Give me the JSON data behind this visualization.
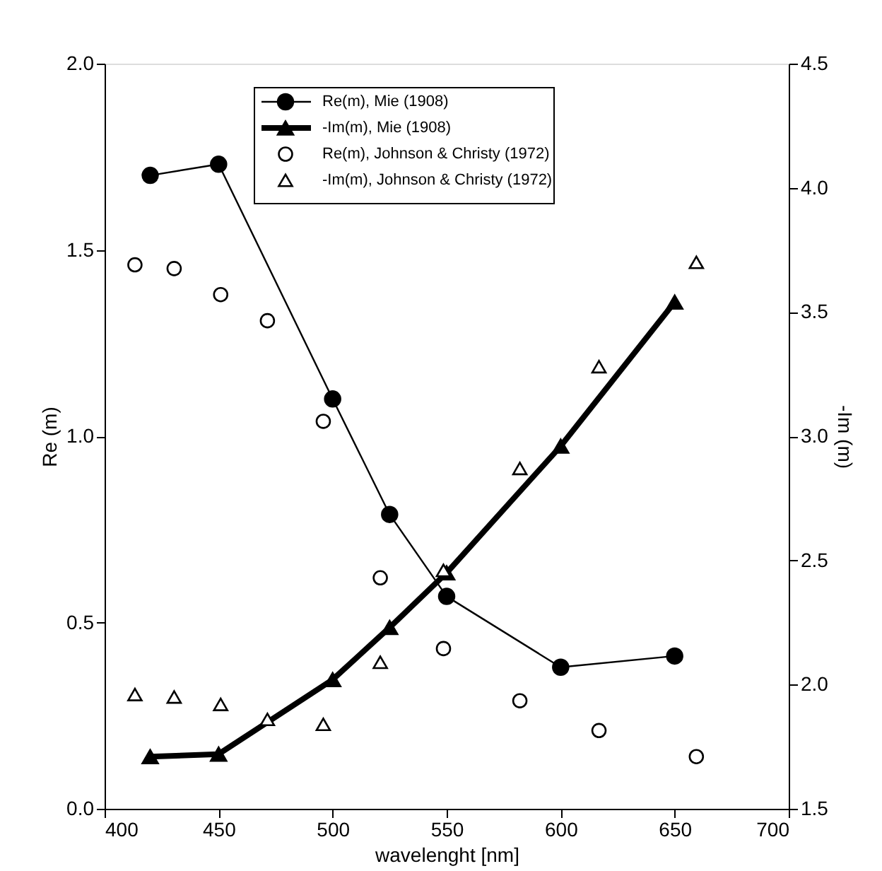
{
  "chart_data": {
    "type": "line",
    "xlabel": "wavelenght [nm]",
    "ylabel": "Re (m)",
    "y2label": "-Im (m)",
    "xlim": [
      400,
      700
    ],
    "xticks": [
      400,
      450,
      500,
      550,
      600,
      650,
      700
    ],
    "ylim": [
      0,
      2
    ],
    "yticks": [
      {
        "value": 0,
        "label": "0.0"
      },
      {
        "value": 0.5,
        "label": "0.5"
      },
      {
        "value": 1,
        "label": "1.0"
      },
      {
        "value": 1.5,
        "label": "1.5"
      },
      {
        "value": 2,
        "label": "2.0"
      }
    ],
    "y2lim": [
      1.5,
      4.5
    ],
    "y2ticks": [
      {
        "value": 1.5,
        "label": "1.5"
      },
      {
        "value": 2,
        "label": "2.0"
      },
      {
        "value": 2.5,
        "label": "2.5"
      },
      {
        "value": 3,
        "label": "3.0"
      },
      {
        "value": 3.5,
        "label": "3.5"
      },
      {
        "value": 4,
        "label": "4.0"
      },
      {
        "value": 4.5,
        "label": "4.5"
      }
    ],
    "grid": false,
    "legend": "top",
    "series": [
      {
        "name": "Re(m), Mie (1908)",
        "marker": "circle",
        "color": "#000000",
        "x": [
          420,
          450,
          500,
          525,
          550,
          600,
          650
        ],
        "values": [
          1.7,
          1.73,
          1.1,
          0.79,
          0.57,
          0.38,
          0.41
        ]
      },
      {
        "name": "-Im(m), Mie (1908)",
        "axis": "y2",
        "marker": "triangle",
        "color": "#000000",
        "x": [
          420,
          450,
          500,
          525,
          550,
          600,
          650
        ],
        "values": [
          1.71,
          1.72,
          2.02,
          2.23,
          2.45,
          2.96,
          3.54
        ]
      },
      {
        "name": "Re(m), Johnson & Christy (1972)",
        "type": "scatter",
        "marker": "circle",
        "color": "#000000",
        "x": [
          413.3,
          430.5,
          450.9,
          471.4,
          495.9,
          520.9,
          548.6,
          582.1,
          616.8,
          659.5
        ],
        "values": [
          1.46,
          1.45,
          1.38,
          1.31,
          1.04,
          0.62,
          0.43,
          0.29,
          0.21,
          0.14
        ]
      },
      {
        "name": "-Im(m), Johnson & Christy (1972)",
        "type": "scatter",
        "axis": "y2",
        "marker": "triangle",
        "color": "#000000",
        "x": [
          413.3,
          430.5,
          450.9,
          471.4,
          495.9,
          520.9,
          548.6,
          582.1,
          616.8,
          659.5
        ],
        "values": [
          1.96,
          1.95,
          1.92,
          1.86,
          1.84,
          2.09,
          2.46,
          2.87,
          3.28,
          3.7
        ]
      }
    ]
  }
}
